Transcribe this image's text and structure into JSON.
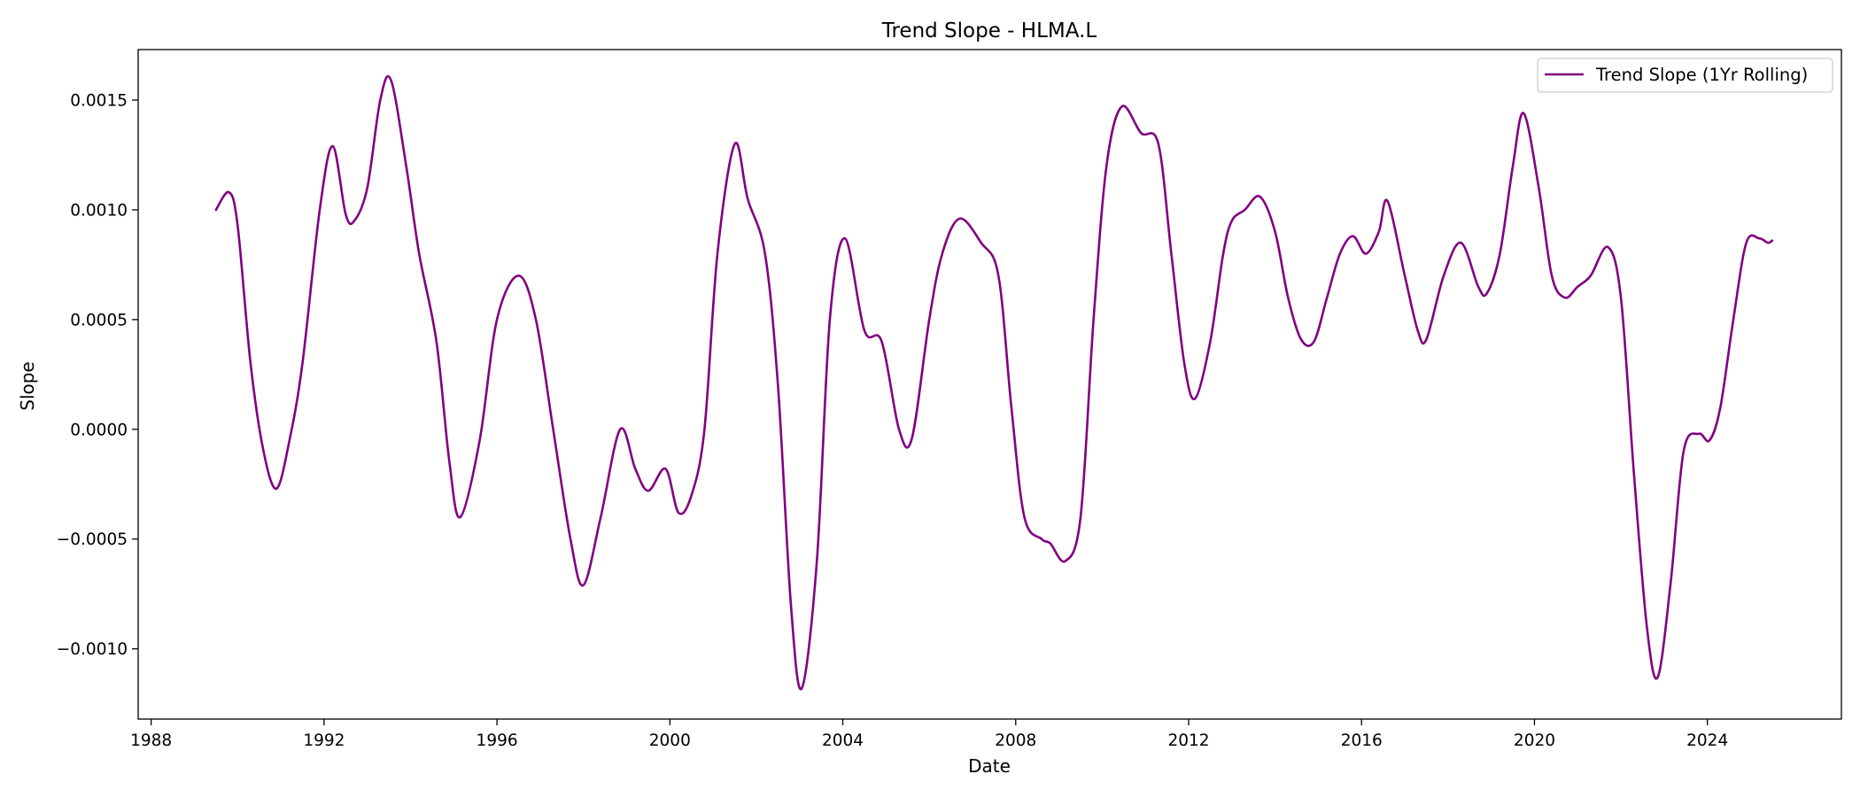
{
  "chart_data": {
    "type": "line",
    "title": "Trend Slope - HLMA.L",
    "xlabel": "Date",
    "ylabel": "Slope",
    "xlim": [
      1987.7,
      2027.1
    ],
    "ylim": [
      -0.00132,
      0.00173
    ],
    "grid": false,
    "legend_position": "top-right",
    "x_ticks": [
      1988,
      1992,
      1996,
      2000,
      2004,
      2008,
      2012,
      2016,
      2020,
      2024
    ],
    "x_tick_labels": [
      "1988",
      "1992",
      "1996",
      "2000",
      "2004",
      "2008",
      "2012",
      "2016",
      "2020",
      "2024"
    ],
    "y_ticks": [
      -0.001,
      -0.0005,
      0.0,
      0.0005,
      0.001,
      0.0015
    ],
    "y_tick_labels": [
      "−0.0010",
      "−0.0005",
      "0.0000",
      "0.0005",
      "0.0010",
      "0.0015"
    ],
    "series": [
      {
        "name": "Trend Slope (1Yr Rolling)",
        "color": "#800080",
        "points": [
          [
            1989.5,
            0.001
          ],
          [
            1989.8,
            0.00108
          ],
          [
            1990.0,
            0.00093
          ],
          [
            1990.3,
            0.0003
          ],
          [
            1990.6,
            -0.0001
          ],
          [
            1990.9,
            -0.00027
          ],
          [
            1991.2,
            -5e-05
          ],
          [
            1991.5,
            0.0003
          ],
          [
            1991.9,
            0.001
          ],
          [
            1992.2,
            0.00129
          ],
          [
            1992.5,
            0.00098
          ],
          [
            1992.7,
            0.00095
          ],
          [
            1993.0,
            0.0011
          ],
          [
            1993.3,
            0.0015
          ],
          [
            1993.55,
            0.00159
          ],
          [
            1993.9,
            0.0012
          ],
          [
            1994.2,
            0.0008
          ],
          [
            1994.6,
            0.0004
          ],
          [
            1994.9,
            -0.00015
          ],
          [
            1995.15,
            -0.0004
          ],
          [
            1995.6,
            -5e-05
          ],
          [
            1996.0,
            0.0005
          ],
          [
            1996.5,
            0.0007
          ],
          [
            1996.9,
            0.0005
          ],
          [
            1997.3,
            0.0
          ],
          [
            1997.7,
            -0.0005
          ],
          [
            1998.0,
            -0.00071
          ],
          [
            1998.4,
            -0.0004
          ],
          [
            1998.85,
            0.0
          ],
          [
            1999.2,
            -0.00018
          ],
          [
            1999.5,
            -0.00028
          ],
          [
            1999.9,
            -0.00018
          ],
          [
            2000.2,
            -0.00038
          ],
          [
            2000.5,
            -0.0003
          ],
          [
            2000.8,
            0.0
          ],
          [
            2001.1,
            0.0008
          ],
          [
            2001.5,
            0.0013
          ],
          [
            2001.8,
            0.00105
          ],
          [
            2002.2,
            0.0008
          ],
          [
            2002.5,
            0.0002
          ],
          [
            2002.8,
            -0.0008
          ],
          [
            2003.05,
            -0.00118
          ],
          [
            2003.4,
            -0.0006
          ],
          [
            2003.7,
            0.0005
          ],
          [
            2004.05,
            0.00087
          ],
          [
            2004.5,
            0.00045
          ],
          [
            2004.9,
            0.0004
          ],
          [
            2005.3,
            0.0
          ],
          [
            2005.6,
            -4e-05
          ],
          [
            2006.0,
            0.0005
          ],
          [
            2006.3,
            0.0008
          ],
          [
            2006.7,
            0.00096
          ],
          [
            2007.2,
            0.00085
          ],
          [
            2007.6,
            0.0007
          ],
          [
            2007.9,
            0.0001
          ],
          [
            2008.2,
            -0.0004
          ],
          [
            2008.6,
            -0.0005
          ],
          [
            2008.8,
            -0.00052
          ],
          [
            2009.15,
            -0.0006
          ],
          [
            2009.5,
            -0.0004
          ],
          [
            2009.8,
            0.0005
          ],
          [
            2010.1,
            0.0012
          ],
          [
            2010.45,
            0.00147
          ],
          [
            2010.9,
            0.00135
          ],
          [
            2011.3,
            0.0013
          ],
          [
            2011.6,
            0.0008
          ],
          [
            2011.9,
            0.0003
          ],
          [
            2012.15,
            0.00014
          ],
          [
            2012.5,
            0.0004
          ],
          [
            2012.8,
            0.0008
          ],
          [
            2013.0,
            0.00095
          ],
          [
            2013.3,
            0.001
          ],
          [
            2013.65,
            0.00106
          ],
          [
            2014.0,
            0.0009
          ],
          [
            2014.3,
            0.0006
          ],
          [
            2014.6,
            0.00041
          ],
          [
            2014.9,
            0.0004
          ],
          [
            2015.2,
            0.0006
          ],
          [
            2015.5,
            0.0008
          ],
          [
            2015.8,
            0.00088
          ],
          [
            2016.1,
            0.0008
          ],
          [
            2016.4,
            0.0009
          ],
          [
            2016.6,
            0.00104
          ],
          [
            2017.0,
            0.0007
          ],
          [
            2017.3,
            0.00045
          ],
          [
            2017.5,
            0.00041
          ],
          [
            2017.9,
            0.0007
          ],
          [
            2018.3,
            0.00085
          ],
          [
            2018.7,
            0.00065
          ],
          [
            2018.9,
            0.00062
          ],
          [
            2019.2,
            0.0008
          ],
          [
            2019.5,
            0.0012
          ],
          [
            2019.75,
            0.00144
          ],
          [
            2020.1,
            0.0011
          ],
          [
            2020.4,
            0.0007
          ],
          [
            2020.7,
            0.0006
          ],
          [
            2021.0,
            0.00065
          ],
          [
            2021.3,
            0.0007
          ],
          [
            2021.7,
            0.00083
          ],
          [
            2022.0,
            0.0006
          ],
          [
            2022.3,
            -0.0002
          ],
          [
            2022.6,
            -0.0009
          ],
          [
            2022.85,
            -0.00113
          ],
          [
            2023.15,
            -0.0007
          ],
          [
            2023.45,
            -0.0001
          ],
          [
            2023.8,
            -2e-05
          ],
          [
            2024.05,
            -5e-05
          ],
          [
            2024.3,
            0.0001
          ],
          [
            2024.6,
            0.0005
          ],
          [
            2024.9,
            0.00085
          ],
          [
            2025.2,
            0.00087
          ],
          [
            2025.4,
            0.00085
          ],
          [
            2025.5,
            0.00086
          ]
        ]
      }
    ]
  }
}
